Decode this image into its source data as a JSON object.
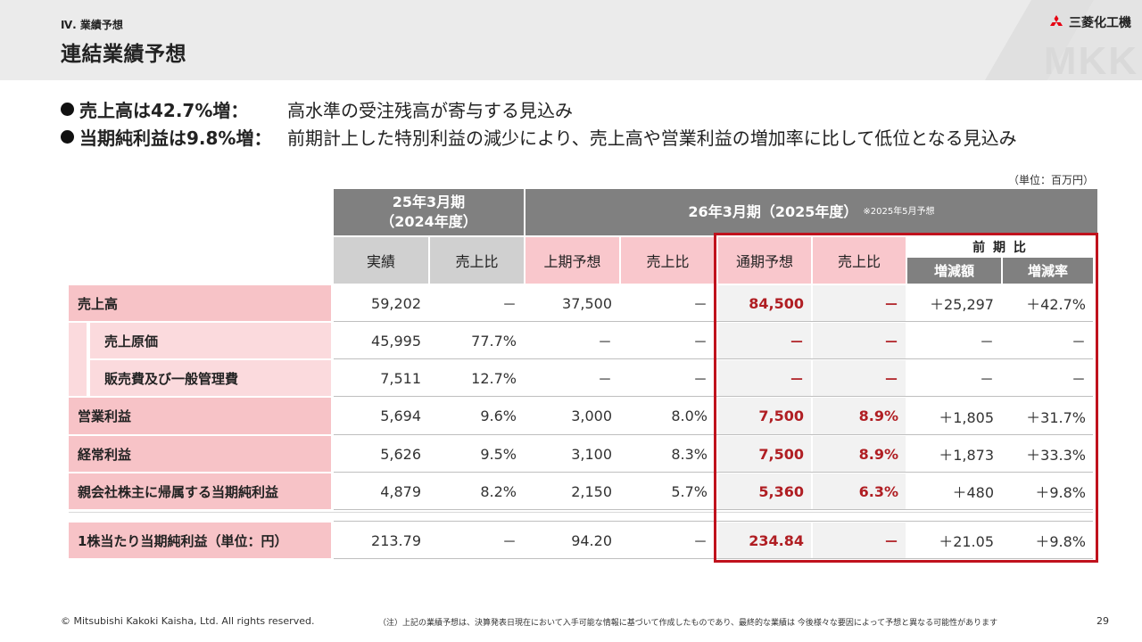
{
  "header": {
    "section_label": "Ⅳ. 業績予想",
    "title": "連結業績予想",
    "logo_text": "三菱化工機",
    "watermark": "MKK"
  },
  "bullets": [
    {
      "head": "売上高は42.7%増：",
      "body": "高水準の受注残高が寄与する見込み"
    },
    {
      "head": "当期純利益は9.8%増：",
      "body": "前期計上した特別利益の減少により、売上高や営業利益の増加率に比して低位となる見込み"
    }
  ],
  "unit": "（単位：百万円）",
  "table": {
    "group_prev": "25年3月期\n（2024年度）",
    "group_cur": "26年3月期（2025年度）",
    "group_cur_note": "※2025年5月予想",
    "cols": {
      "actual": "実績",
      "ratio": "売上比",
      "h1": "上期予想",
      "h1_ratio": "売上比",
      "full": "通期予想",
      "full_ratio": "売上比",
      "yoy": "前 期 比",
      "diff": "増減額",
      "rate": "増減率"
    },
    "rows": [
      {
        "label": "売上高",
        "sub": false,
        "actual": "59,202",
        "ratio": "－",
        "h1": "37,500",
        "h1_ratio": "－",
        "full": "84,500",
        "full_ratio": "－",
        "diff": "＋25,297",
        "rate": "＋42.7%"
      },
      {
        "label": "売上原価",
        "sub": true,
        "actual": "45,995",
        "ratio": "77.7%",
        "h1": "－",
        "h1_ratio": "－",
        "full": "－",
        "full_ratio": "－",
        "diff": "－",
        "rate": "－"
      },
      {
        "label": "販売費及び一般管理費",
        "sub": true,
        "actual": "7,511",
        "ratio": "12.7%",
        "h1": "－",
        "h1_ratio": "－",
        "full": "－",
        "full_ratio": "－",
        "diff": "－",
        "rate": "－"
      },
      {
        "label": "営業利益",
        "sub": false,
        "actual": "5,694",
        "ratio": "9.6%",
        "h1": "3,000",
        "h1_ratio": "8.0%",
        "full": "7,500",
        "full_ratio": "8.9%",
        "diff": "＋1,805",
        "rate": "＋31.7%"
      },
      {
        "label": "経常利益",
        "sub": false,
        "actual": "5,626",
        "ratio": "9.5%",
        "h1": "3,100",
        "h1_ratio": "8.3%",
        "full": "7,500",
        "full_ratio": "8.9%",
        "diff": "＋1,873",
        "rate": "＋33.3%"
      },
      {
        "label": "親会社株主に帰属する当期純利益",
        "sub": false,
        "actual": "4,879",
        "ratio": "8.2%",
        "h1": "2,150",
        "h1_ratio": "5.7%",
        "full": "5,360",
        "full_ratio": "6.3%",
        "diff": "＋480",
        "rate": "＋9.8%"
      },
      {
        "label": "1株当たり当期純利益（単位：円）",
        "sub": false,
        "actual": "213.79",
        "ratio": "－",
        "h1": "94.20",
        "h1_ratio": "－",
        "full": "234.84",
        "full_ratio": "－",
        "diff": "＋21.05",
        "rate": "＋9.8%"
      }
    ]
  },
  "footer": {
    "copyright": "© Mitsubishi Kakoki Kaisha, Ltd. All rights reserved.",
    "note": "（注）上記の業績予想は、決算発表日現在において入手可能な情報に基づいて作成したものであり、最終的な業績は 今後様々な要因によって予想と異なる可能性があります",
    "page": "29"
  },
  "colors": {
    "accent_red": "#c0121d",
    "value_red": "#b01e23",
    "header_grey": "#808080",
    "label_pink": "#f7c3c7"
  }
}
